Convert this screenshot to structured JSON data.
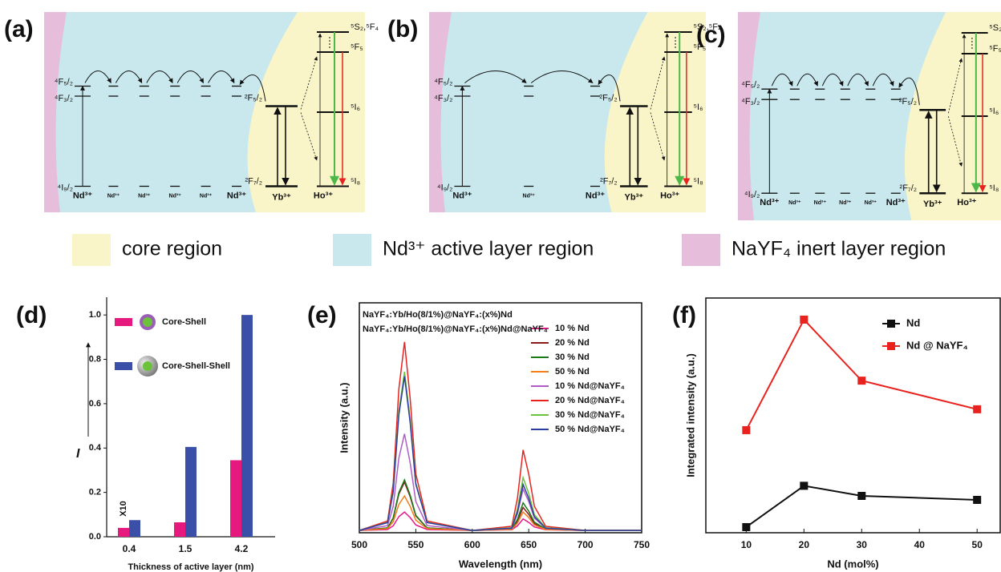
{
  "diagrams": [
    {
      "label": "(a)",
      "nd_levels": [
        "⁴F₅/₂",
        "⁴F₃/₂",
        "⁴I₉/₂"
      ],
      "nd_ions": [
        "Nd³⁺",
        "Nd³⁺",
        "Nd³⁺",
        "Nd³⁺",
        "Nd³⁺",
        "Nd³⁺"
      ],
      "yb_levels": [
        "²F₅/₂",
        "²F₇/₂"
      ],
      "yb_ion": "Yb³⁺",
      "ho_levels": [
        "⁵S₂,⁵F₄",
        "⁵F₅",
        "⁵I₆",
        "⁵I₈"
      ],
      "ho_ion": "Ho³⁺"
    },
    {
      "label": "(b)",
      "nd_levels": [
        "⁴F₅/₂",
        "⁴F₃/₂",
        "⁴I₉/₂"
      ],
      "nd_ions": [
        "Nd³⁺",
        "Nd³⁺",
        "Nd³⁺"
      ],
      "yb_levels": [
        "²F₅/₂",
        "²F₇/₂"
      ],
      "yb_ion": "Yb³⁺",
      "ho_levels": [
        "⁵S₂,⁵F₄",
        "⁵F₅",
        "⁵I₆",
        "⁵I₈"
      ],
      "ho_ion": "Ho³⁺"
    },
    {
      "label": "(c)",
      "nd_levels": [
        "⁴F₅/₂",
        "⁴F₃/₂",
        "⁴I₉/₂"
      ],
      "nd_ions": [
        "Nd³⁺",
        "Nd³⁺",
        "Nd³⁺",
        "Nd³⁺",
        "Nd³⁺",
        "Nd³⁺"
      ],
      "yb_levels": [
        "²F₅/₂",
        "²F₇/₂"
      ],
      "yb_ion": "Yb³⁺",
      "ho_levels": [
        "⁵S₂,⁵F",
        "⁵F₅",
        "⁵I₆",
        "⁵I₈"
      ],
      "ho_ion": "Ho³⁺"
    }
  ],
  "legend": [
    {
      "name": "core region",
      "color": "#faf5c8"
    },
    {
      "name": "Nd³⁺ active layer region",
      "color": "#c8e8ee"
    },
    {
      "name": "NaYF₄ inert layer region",
      "color": "#e6bedb"
    }
  ],
  "chart_data": [
    {
      "type": "bar",
      "label": "(d)",
      "categories": [
        "0.4",
        "1.5",
        "4.2"
      ],
      "series": [
        {
          "name": "Core-Shell",
          "color": "#e6197f",
          "values": [
            0.04,
            0.065,
            0.345
          ]
        },
        {
          "name": "Core-Shell-Shell",
          "color": "#3a4fa8",
          "values": [
            0.075,
            0.405,
            1.0
          ]
        }
      ],
      "ylim": [
        0,
        1.08
      ],
      "yticks": [
        {
          "value": 0,
          "label": "0.0"
        },
        {
          "value": 0.2,
          "label": "0.2"
        },
        {
          "value": 0.4,
          "label": "0.4"
        },
        {
          "value": 0.6,
          "label": "0.6"
        },
        {
          "value": 0.8,
          "label": "0.8"
        },
        {
          "value": 1,
          "label": "1.0"
        }
      ],
      "xlabel": "Thickness of active layer (nm)",
      "ylabel": "I",
      "annotation": "X10"
    },
    {
      "type": "line",
      "label": "(e)",
      "notes": [
        "NaYF₄:Yb/Ho(8/1%)@NaYF₄:(x%)Nd",
        "NaYF₄:Yb/Ho(8/1%)@NaYF₄:(x%)Nd@NaYF₄"
      ],
      "x": [
        500,
        525,
        530,
        535,
        540,
        545,
        550,
        560,
        600,
        635,
        640,
        645,
        650,
        655,
        665,
        700,
        750
      ],
      "series": [
        {
          "name": "10 % Nd",
          "color": "#e6198c",
          "values": [
            1,
            1.4,
            3,
            7,
            9,
            6.6,
            3.4,
            1.4,
            1,
            1.3,
            3,
            6,
            4.5,
            2.5,
            1.3,
            1,
            1
          ]
        },
        {
          "name": "20 % Nd",
          "color": "#8b1a1a",
          "values": [
            1,
            2.1,
            6.3,
            16.8,
            22,
            15.7,
            7.3,
            2.1,
            1,
            1.5,
            5,
            11,
            8,
            4,
            1.5,
            1,
            1
          ]
        },
        {
          "name": "30 % Nd",
          "color": "#1a7a1a",
          "values": [
            1,
            2.1,
            6.5,
            17.5,
            23,
            16.4,
            7.6,
            2.1,
            1,
            1.6,
            5.8,
            13,
            9.4,
            4.6,
            1.6,
            1,
            1
          ]
        },
        {
          "name": "50 % Nd",
          "color": "#f07f1a",
          "values": [
            1,
            1.8,
            4.8,
            12.3,
            16,
            11.5,
            5.5,
            1.8,
            1,
            1.4,
            4.2,
            9,
            6.6,
            3.4,
            1.4,
            1,
            1
          ]
        },
        {
          "name": "10 % Nd@NaYF₄",
          "color": "#b05cc8",
          "values": [
            1,
            3.1,
            11.5,
            32.5,
            43,
            30.4,
            13.6,
            3.1,
            1,
            1.9,
            8.2,
            19,
            13.6,
            6.4,
            1.9,
            1,
            1
          ]
        },
        {
          "name": "20 % Nd@NaYF₄",
          "color": "#e8231f",
          "values": [
            1,
            5.1,
            21.5,
            62.5,
            83,
            58.4,
            25.6,
            5.1,
            1,
            2.8,
            15,
            36,
            25.5,
            11.5,
            2.8,
            1,
            1
          ]
        },
        {
          "name": "30 % Nd@NaYF₄",
          "color": "#6cc23a",
          "values": [
            1,
            4.5,
            18.3,
            52.8,
            70,
            49.3,
            21.7,
            4.5,
            1,
            2.2,
            10.2,
            24,
            17.1,
            7.9,
            2.2,
            1,
            1
          ]
        },
        {
          "name": "50 % Nd@NaYF₄",
          "color": "#2c3fa0",
          "values": [
            1,
            4.4,
            17.8,
            51.3,
            68,
            47.9,
            21.1,
            4.4,
            1,
            2,
            9,
            21,
            15,
            7,
            2,
            1,
            1
          ]
        }
      ],
      "xlim": [
        500,
        750
      ],
      "xticks": [
        500,
        550,
        600,
        650,
        700,
        750
      ],
      "ylim": [
        0,
        100
      ],
      "xlabel": "Wavelength (nm)",
      "ylabel": "Intensity (a.u.)",
      "legend": "upper right"
    },
    {
      "type": "line",
      "label": "(f)",
      "markers": true,
      "x": [
        10,
        20,
        30,
        50
      ],
      "series": [
        {
          "name": "Nd",
          "color": "#111111",
          "values": [
            2.4,
            20,
            15.7,
            14
          ]
        },
        {
          "name": "Nd @ NaYF₄",
          "color": "#e8231f",
          "values": [
            43.7,
            90.8,
            64.8,
            52.6
          ]
        }
      ],
      "xlim": [
        3,
        54
      ],
      "xticks": [
        10,
        20,
        30,
        40,
        50
      ],
      "ylim": [
        0,
        100
      ],
      "xlabel": "Nd (mol%)",
      "ylabel": "Integrated intensity (a.u.)",
      "legend": "upper right"
    }
  ]
}
